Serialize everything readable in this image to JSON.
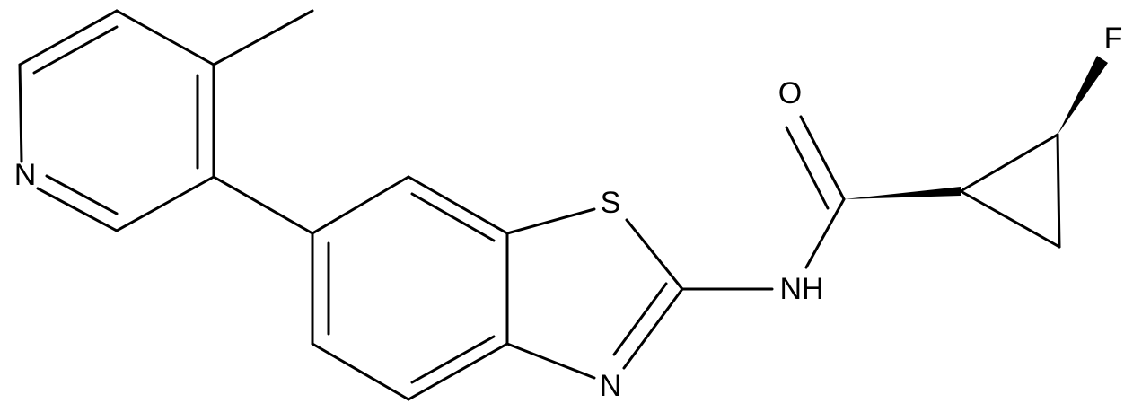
{
  "atoms": {
    "pyridine_n": "N",
    "sulfur": "S",
    "thiazole_n": "N",
    "amide_nh": "NH",
    "oxygen": "O",
    "fluorine": "F"
  }
}
